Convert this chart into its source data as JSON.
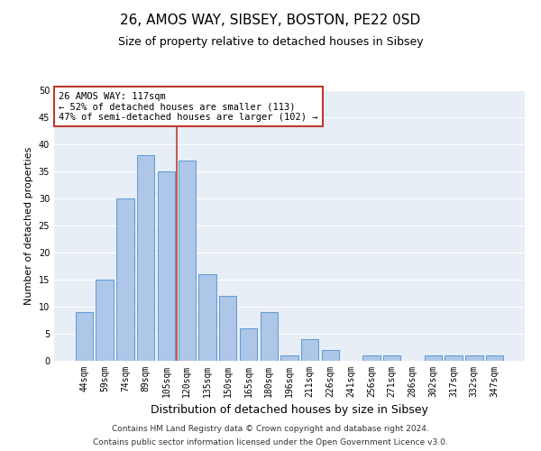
{
  "title1": "26, AMOS WAY, SIBSEY, BOSTON, PE22 0SD",
  "title2": "Size of property relative to detached houses in Sibsey",
  "xlabel": "Distribution of detached houses by size in Sibsey",
  "ylabel": "Number of detached properties",
  "categories": [
    "44sqm",
    "59sqm",
    "74sqm",
    "89sqm",
    "105sqm",
    "120sqm",
    "135sqm",
    "150sqm",
    "165sqm",
    "180sqm",
    "196sqm",
    "211sqm",
    "226sqm",
    "241sqm",
    "256sqm",
    "271sqm",
    "286sqm",
    "302sqm",
    "317sqm",
    "332sqm",
    "347sqm"
  ],
  "values": [
    9,
    15,
    30,
    38,
    35,
    37,
    16,
    12,
    6,
    9,
    1,
    4,
    2,
    0,
    1,
    1,
    0,
    1,
    1,
    1,
    1
  ],
  "bar_color": "#aec6e8",
  "bar_edge_color": "#5b9bd5",
  "vline_color": "#c0392b",
  "annotation_text": "26 AMOS WAY: 117sqm\n← 52% of detached houses are smaller (113)\n47% of semi-detached houses are larger (102) →",
  "annotation_box_color": "#ffffff",
  "annotation_box_edge": "#c0392b",
  "ylim": [
    0,
    50
  ],
  "yticks": [
    0,
    5,
    10,
    15,
    20,
    25,
    30,
    35,
    40,
    45,
    50
  ],
  "bg_color": "#e8eef5",
  "footer1": "Contains HM Land Registry data © Crown copyright and database right 2024.",
  "footer2": "Contains public sector information licensed under the Open Government Licence v3.0.",
  "title1_fontsize": 11,
  "title2_fontsize": 9,
  "xlabel_fontsize": 9,
  "ylabel_fontsize": 8,
  "tick_fontsize": 7,
  "footer_fontsize": 6.5,
  "annotation_fontsize": 7.5
}
